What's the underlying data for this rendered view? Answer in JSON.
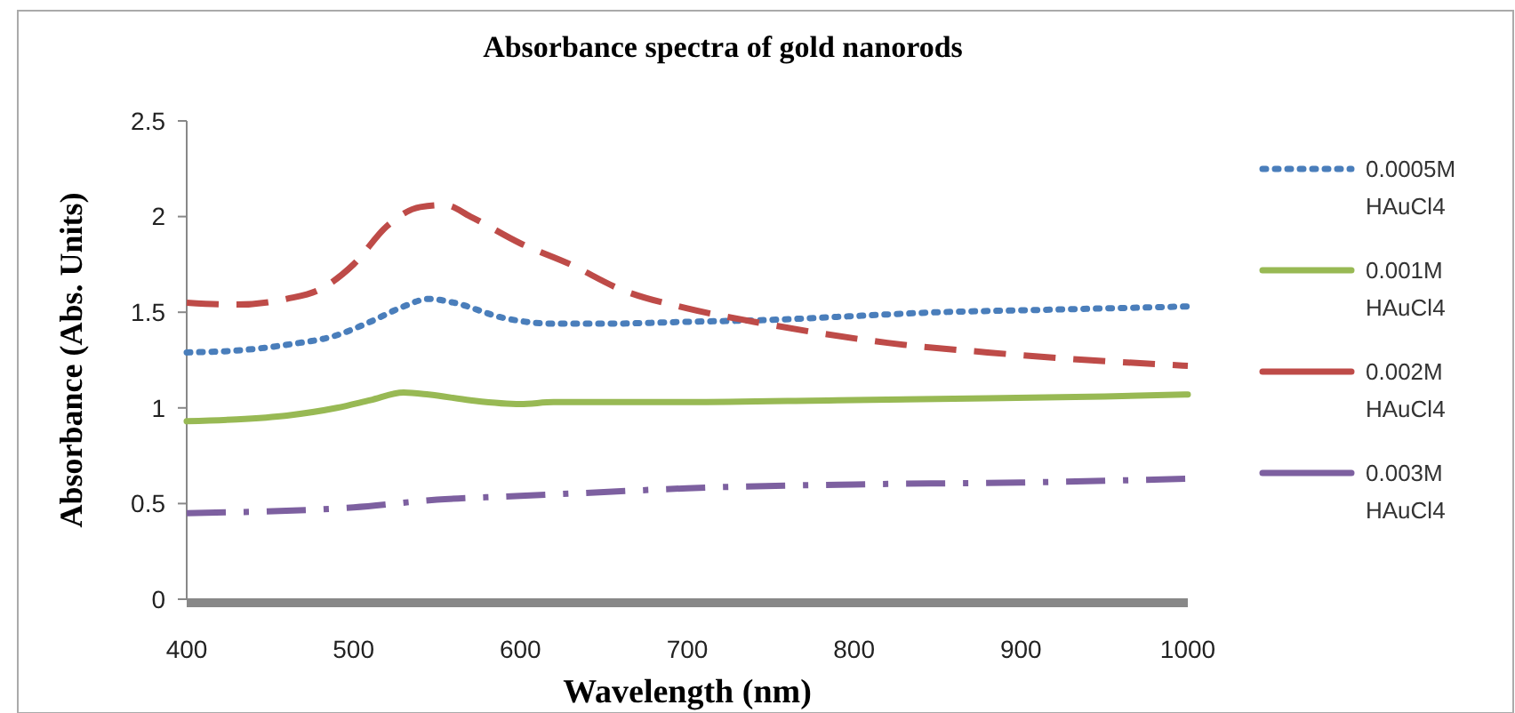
{
  "chart_data": {
    "type": "line",
    "title": "Absorbance spectra of gold nanorods",
    "xlabel": "Wavelength (nm)",
    "ylabel": "Absorbance (Abs. Units)",
    "xlim": [
      400,
      1000
    ],
    "xticks": [
      400,
      500,
      600,
      700,
      800,
      900,
      1000
    ],
    "ylim": [
      0,
      2.5
    ],
    "yticks": [
      0,
      0.5,
      1,
      1.5,
      2,
      2.5
    ],
    "grid": false,
    "legend": "right",
    "marker": "none",
    "series": [
      {
        "name": "0.0005M HAuCl4",
        "color": "#4a7ebb",
        "line_style": "dotted",
        "x": [
          400,
          430,
          460,
          490,
          510,
          530,
          545,
          560,
          590,
          620,
          650,
          700,
          750,
          800,
          850,
          900,
          950,
          1000
        ],
        "values": [
          1.29,
          1.3,
          1.33,
          1.38,
          1.45,
          1.53,
          1.57,
          1.55,
          1.47,
          1.44,
          1.44,
          1.45,
          1.46,
          1.48,
          1.5,
          1.51,
          1.52,
          1.53
        ]
      },
      {
        "name": "0.001M HAuCl4",
        "color": "#98b954",
        "line_style": "solid",
        "x": [
          400,
          430,
          460,
          490,
          510,
          530,
          545,
          570,
          600,
          620,
          700,
          790,
          880,
          950,
          1000
        ],
        "values": [
          0.93,
          0.94,
          0.96,
          1.0,
          1.04,
          1.08,
          1.07,
          1.04,
          1.02,
          1.03,
          1.03,
          1.04,
          1.05,
          1.06,
          1.07
        ]
      },
      {
        "name": "0.002M HAuCl4",
        "color": "#be4b48",
        "line_style": "dashed",
        "x": [
          400,
          430,
          460,
          480,
          500,
          520,
          540,
          555,
          570,
          600,
          630,
          660,
          700,
          740,
          780,
          820,
          880,
          940,
          1000
        ],
        "values": [
          1.55,
          1.54,
          1.57,
          1.62,
          1.75,
          1.95,
          2.05,
          2.06,
          2.0,
          1.86,
          1.75,
          1.62,
          1.52,
          1.45,
          1.39,
          1.34,
          1.29,
          1.25,
          1.22
        ]
      },
      {
        "name": "0.003M HAuCl4",
        "color": "#7d60a0",
        "line_style": "dashdot",
        "x": [
          400,
          500,
          550,
          600,
          650,
          700,
          800,
          900,
          1000
        ],
        "values": [
          0.45,
          0.48,
          0.52,
          0.54,
          0.56,
          0.58,
          0.6,
          0.61,
          0.63
        ]
      }
    ]
  }
}
